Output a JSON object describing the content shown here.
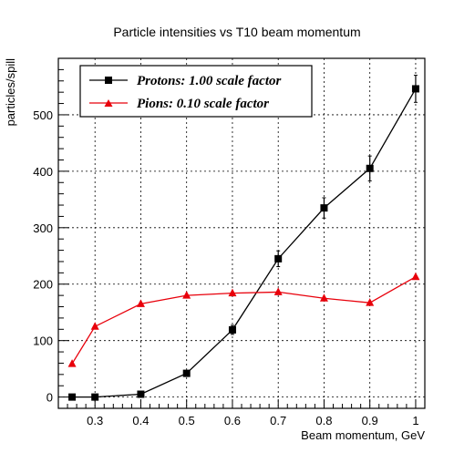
{
  "chart_data": {
    "type": "line",
    "title": "Particle intensities vs T10 beam momentum",
    "xlabel": "Beam momentum, GeV",
    "ylabel": "particles/spill",
    "xlim": [
      0.22,
      1.02
    ],
    "ylim": [
      -20,
      600
    ],
    "x_ticks": [
      0.3,
      0.4,
      0.5,
      0.6,
      0.7,
      0.8,
      0.9,
      1
    ],
    "x_tick_labels": [
      "0.3",
      "0.4",
      "0.5",
      "0.6",
      "0.7",
      "0.8",
      "0.9",
      "1"
    ],
    "y_ticks": [
      0,
      100,
      200,
      300,
      400,
      500
    ],
    "y_tick_labels": [
      "0",
      "100",
      "200",
      "300",
      "400",
      "500"
    ],
    "grid": true,
    "legend_position": "top-left",
    "series": [
      {
        "name": "Protons: 1.00 scale factor",
        "color": "#000000",
        "marker": "square",
        "x": [
          0.25,
          0.3,
          0.4,
          0.5,
          0.6,
          0.7,
          0.8,
          0.9,
          1.0
        ],
        "y": [
          0,
          0,
          5,
          42,
          119,
          245,
          335,
          405,
          546
        ],
        "error": [
          2,
          2,
          3,
          5,
          8,
          14,
          18,
          22,
          24
        ]
      },
      {
        "name": "Pions: 0.10 scale factor",
        "color": "#e8000b",
        "marker": "triangle",
        "x": [
          0.25,
          0.3,
          0.4,
          0.5,
          0.6,
          0.7,
          0.8,
          0.9,
          1.0
        ],
        "y": [
          59,
          125,
          165,
          180,
          184,
          186,
          175,
          167,
          213
        ]
      }
    ]
  }
}
